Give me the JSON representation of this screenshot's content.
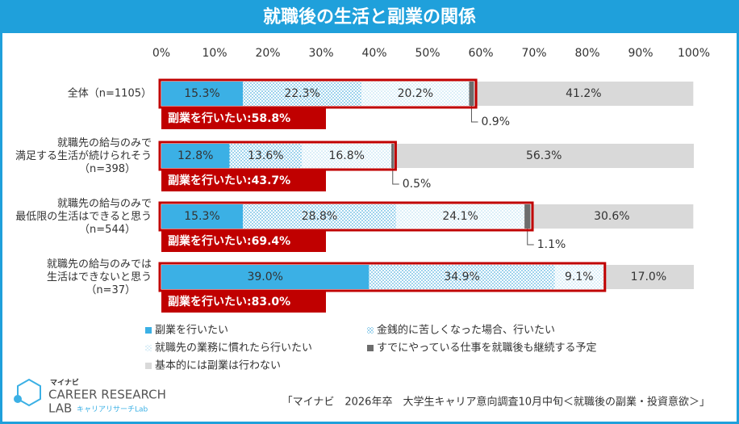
{
  "chart_data": {
    "type": "stacked-bar-horizontal",
    "title": "就職後の生活と副業の関係",
    "categories": [
      "全体（n=1105）",
      "就職先の給与のみで\n満足する生活が続けられそう\n（n=398）",
      "就職先の給与のみで\n最低限の生活はできると思う\n（n=544）",
      "就職先の給与のみでは\n生活はできないと思う\n（n=37）"
    ],
    "series": [
      {
        "name": "副業を行いたい",
        "color": "#3bb0e5",
        "fill": "solid",
        "values": [
          15.3,
          12.8,
          15.3,
          39.0
        ],
        "value_labels": [
          "15.3%",
          "12.8%",
          "15.3%",
          "39.0%"
        ]
      },
      {
        "name": "金銭的に苦しくなった場合、行いたい",
        "color": "#5ab4e0",
        "fill": "dots",
        "values": [
          22.3,
          13.6,
          28.8,
          34.9
        ],
        "value_labels": [
          "22.3%",
          "13.6%",
          "28.8%",
          "34.9%"
        ]
      },
      {
        "name": "就職先の業務に慣れたら行いたい",
        "color": "#b3dcf1",
        "fill": "dots",
        "values": [
          20.2,
          16.8,
          24.1,
          9.1
        ],
        "value_labels": [
          "20.2%",
          "16.8%",
          "24.1%",
          "9.1%"
        ]
      },
      {
        "name": "すでにやっている仕事を就職後も継続する予定",
        "color": "#6d6d6d",
        "fill": "solid",
        "label_position": "outside",
        "values": [
          0.9,
          0.5,
          1.1,
          null
        ],
        "value_labels": [
          "0.9%",
          "0.5%",
          "1.1%",
          null
        ]
      },
      {
        "name": "基本的には副業は行わない",
        "color": "#d9d9d9",
        "fill": "solid",
        "values": [
          41.2,
          56.3,
          30.6,
          17.0
        ],
        "value_labels": [
          "41.2%",
          "56.3%",
          "30.6%",
          "17.0%"
        ]
      }
    ],
    "totals": {
      "name": "副業を行いたい",
      "color": "#c00000",
      "values": [
        58.8,
        43.7,
        69.4,
        83.0
      ],
      "value_labels": [
        "副業を行いたい:58.8%",
        "副業を行いたい:43.7%",
        "副業を行いたい:69.4%",
        "副業を行いたい:83.0%"
      ]
    },
    "xlim": [
      0,
      100
    ],
    "xticks": [
      {
        "value": 0,
        "label": "0%"
      },
      {
        "value": 10,
        "label": "10%"
      },
      {
        "value": 20,
        "label": "20%"
      },
      {
        "value": 30,
        "label": "30%"
      },
      {
        "value": 40,
        "label": "40%"
      },
      {
        "value": 50,
        "label": "50%"
      },
      {
        "value": 60,
        "label": "60%"
      },
      {
        "value": 70,
        "label": "70%"
      },
      {
        "value": 80,
        "label": "80%"
      },
      {
        "value": 90,
        "label": "90%"
      },
      {
        "value": 100,
        "label": "100%"
      }
    ],
    "source": "「マイナビ　2026年卒　大学生キャリア意向調査10月中旬＜就職後の副業・投資意欲＞」",
    "logo": {
      "brand": "マイナビ",
      "line1": "CAREER RESEARCH",
      "line2": "LAB",
      "sub": "キャリアリサーチLab"
    }
  }
}
